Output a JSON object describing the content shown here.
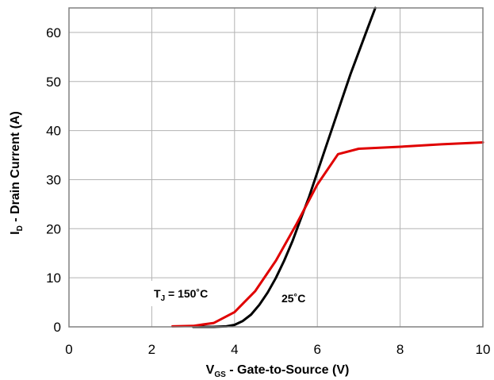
{
  "chart_data": {
    "type": "line",
    "xlabel": {
      "main": "V",
      "sub": "GS",
      "rest": " - Gate-to-Source (V)"
    },
    "ylabel": {
      "main": "I",
      "sub": "D",
      "rest": " - Drain Current (A)"
    },
    "xlim": [
      0,
      10
    ],
    "ylim": [
      0,
      65
    ],
    "x_ticks": [
      0,
      2,
      4,
      6,
      8,
      10
    ],
    "y_ticks": [
      0,
      10,
      20,
      30,
      40,
      50,
      60
    ],
    "grid": true,
    "legend": "none",
    "series": [
      {
        "color": "#000000",
        "x": [
          3.0,
          3.5,
          3.8,
          4.0,
          4.2,
          4.4,
          4.6,
          4.8,
          5.0,
          5.2,
          5.4,
          5.6,
          5.8,
          6.0,
          6.2,
          6.4,
          6.6,
          6.8,
          7.0,
          7.2,
          7.4
        ],
        "y": [
          0,
          0,
          0.1,
          0.4,
          1.2,
          2.5,
          4.5,
          7.0,
          10.0,
          13.5,
          17.5,
          22.0,
          26.5,
          31.5,
          36.5,
          41.5,
          46.5,
          51.5,
          56.0,
          60.5,
          65.0
        ]
      },
      {
        "color": "#e00000",
        "x": [
          2.5,
          3.0,
          3.5,
          4.0,
          4.5,
          5.0,
          5.5,
          6.0,
          6.5,
          7.0,
          8.0,
          9.0,
          10.0
        ],
        "y": [
          0.1,
          0.2,
          0.8,
          3.0,
          7.3,
          13.5,
          21.0,
          29.0,
          35.2,
          36.3,
          36.7,
          37.2,
          37.6
        ]
      }
    ],
    "annotations": {
      "tj_main": "T",
      "tj_sub": "J",
      "tj_rest": " = 150˚C",
      "t25": "25˚C"
    }
  }
}
